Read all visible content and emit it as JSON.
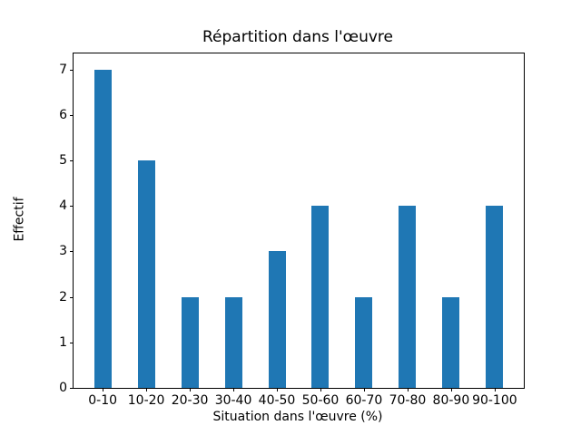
{
  "chart_data": {
    "type": "bar",
    "title": "Répartition dans l'œuvre",
    "xlabel": "Situation dans l'œuvre (%)",
    "ylabel": "Effectif",
    "categories": [
      "0-10",
      "10-20",
      "20-30",
      "30-40",
      "40-50",
      "50-60",
      "60-70",
      "70-80",
      "80-90",
      "90-100"
    ],
    "values": [
      7,
      5,
      2,
      2,
      3,
      4,
      2,
      4,
      2,
      4
    ],
    "yticks": [
      0,
      1,
      2,
      3,
      4,
      5,
      6,
      7
    ],
    "ylim": [
      0,
      7.35
    ],
    "bar_color": "#1f77b4",
    "grid": false,
    "legend": null
  }
}
